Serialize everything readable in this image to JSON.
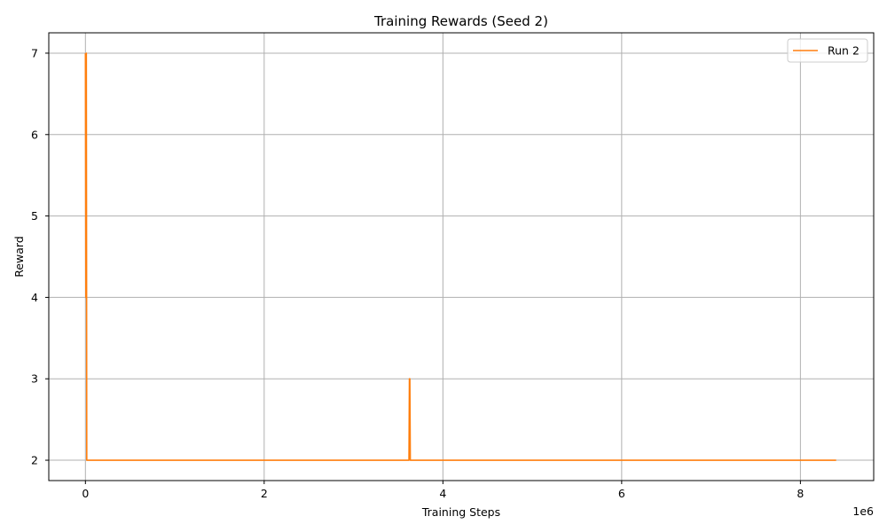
{
  "chart_data": {
    "type": "line",
    "title": "Training Rewards (Seed 2)",
    "xlabel": "Training Steps",
    "ylabel": "Reward",
    "x_offset_label": "1e6",
    "xlim": [
      -0.41,
      8.82
    ],
    "ylim": [
      1.75,
      7.25
    ],
    "x_ticks": [
      0,
      2,
      4,
      6,
      8
    ],
    "x_tick_labels": [
      "0",
      "2",
      "4",
      "6",
      "8"
    ],
    "y_ticks": [
      2,
      3,
      4,
      5,
      6,
      7
    ],
    "y_tick_labels": [
      "2",
      "3",
      "4",
      "5",
      "6",
      "7"
    ],
    "grid": true,
    "legend_position": "top-right",
    "series": [
      {
        "name": "Run 2",
        "color": "#ff7f0e",
        "x": [
          0,
          0.005,
          0.01,
          0.015,
          0.02,
          3.62,
          3.625,
          3.63,
          3.635,
          8.4
        ],
        "y": [
          7,
          4,
          7,
          2,
          2,
          2,
          3,
          3,
          2,
          2
        ]
      }
    ]
  }
}
